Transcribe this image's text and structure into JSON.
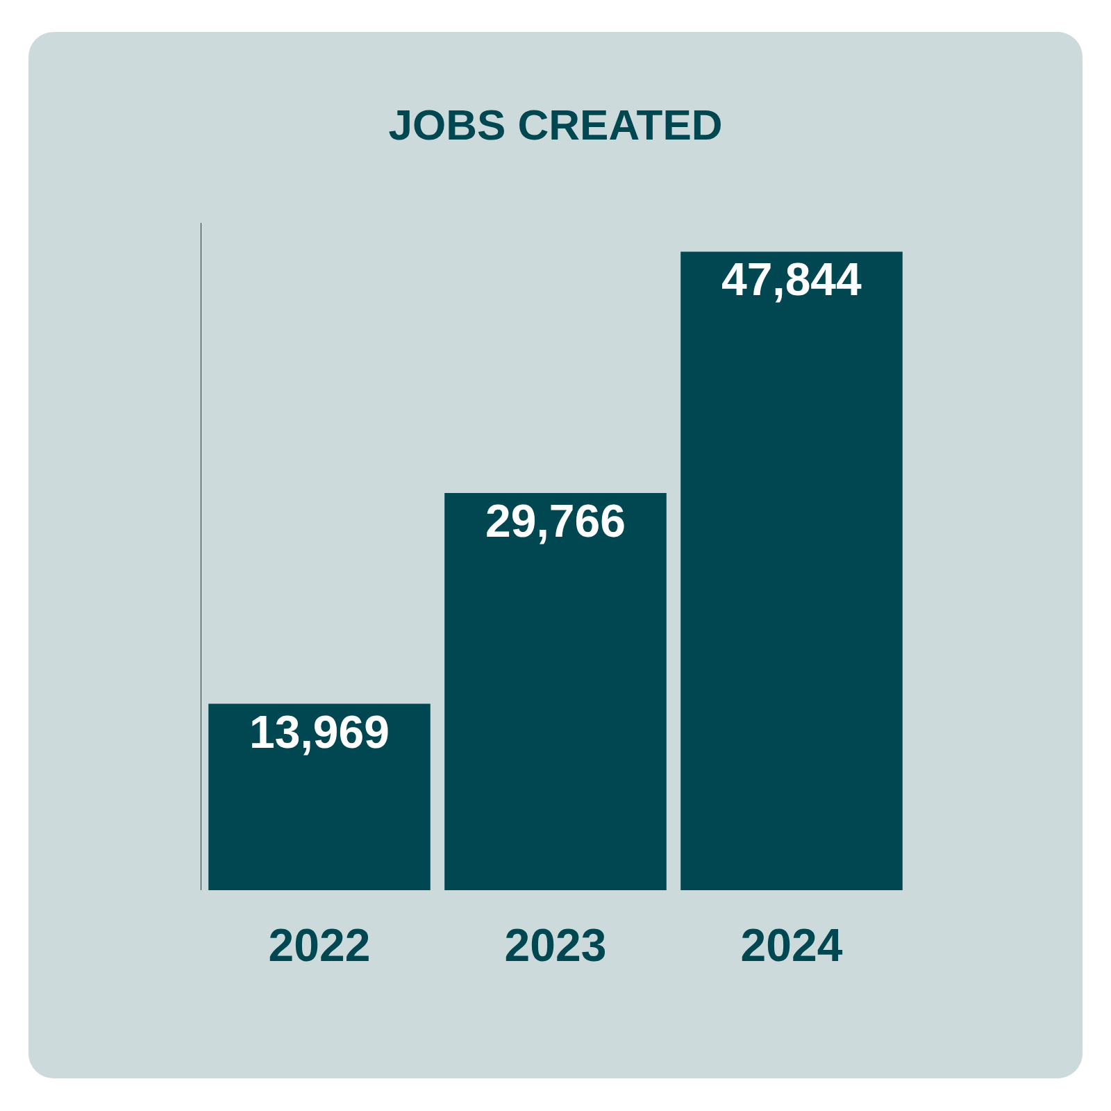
{
  "chart_data": {
    "type": "bar",
    "title": "JOBS CREATED",
    "categories": [
      "2022",
      "2023",
      "2024"
    ],
    "values": [
      13969,
      29766,
      47844
    ],
    "value_labels": [
      "13,969",
      "29,766",
      "47,844"
    ],
    "color": "#014751",
    "ylim": [
      0,
      50000
    ],
    "data_labels": true,
    "tick_labels": "x",
    "grid": false
  }
}
